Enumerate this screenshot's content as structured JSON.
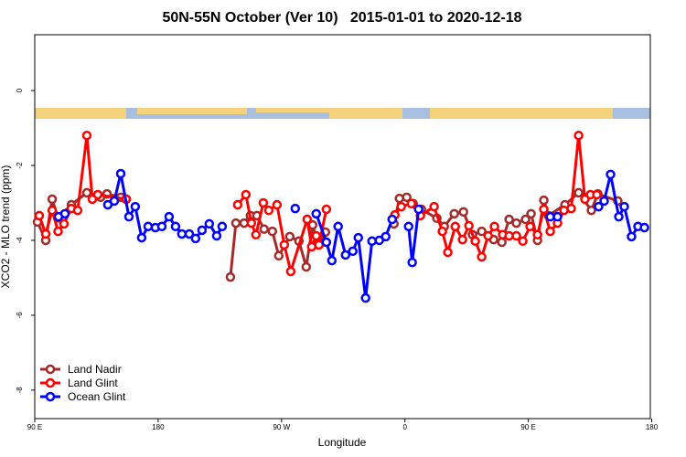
{
  "chart_data": {
    "type": "line",
    "title": "50N-55N October (Ver 10)   2015-01-01 to 2020-12-18",
    "xlabel": "Longitude",
    "ylabel": "XCO2 - MLO trend (ppm)",
    "xlim": [
      90,
      539
    ],
    "ylim": [
      -8.76,
      1.49
    ],
    "xticks": [
      {
        "value": 90,
        "label": "90 E"
      },
      {
        "value": 180,
        "label": "180"
      },
      {
        "value": 270,
        "label": "90 W"
      },
      {
        "value": 360,
        "label": "0"
      },
      {
        "value": 450,
        "label": "90 E"
      },
      {
        "value": 540,
        "label": "180"
      }
    ],
    "yticks": [
      0,
      -2,
      -4,
      -6,
      -8
    ],
    "grid": false,
    "legend": "bottom left",
    "series": [
      {
        "name": "Land Nadir",
        "color": "#a52a2a",
        "x": [
          92,
          98,
          102.7,
          107,
          116.7,
          128,
          138,
          142.7,
          152.7,
          156.7,
          null,
          232.7,
          236.7,
          242.7,
          247.3,
          252,
          257.3,
          263.3,
          268,
          276,
          282.7,
          288,
          292.7,
          296.7,
          302,
          null,
          352,
          356,
          361.3,
          366,
          372,
          383.3,
          388.7,
          396,
          402.7,
          409.3,
          416,
          424.7,
          430.7,
          436,
          441.3,
          448,
          452,
          456.7,
          461.3,
          464.7,
          476.7,
          486.7,
          496,
          500.7,
          515.3
        ],
        "values": [
          -3.51,
          -4.0,
          -2.9,
          -3.4,
          -3.05,
          -2.73,
          -2.85,
          -2.76,
          -2.85,
          -2.9,
          null,
          -4.98,
          -3.54,
          -3.54,
          -3.34,
          -3.34,
          -3.7,
          -3.76,
          -4.41,
          -3.9,
          -4.02,
          -4.71,
          -3.59,
          -4.12,
          -3.78,
          null,
          -3.56,
          -2.88,
          -2.85,
          -3.02,
          -3.17,
          -3.41,
          -3.63,
          -3.29,
          -3.24,
          -3.85,
          -3.76,
          -3.98,
          -4.05,
          -3.44,
          -3.54,
          -3.44,
          -3.29,
          -4.0,
          -2.93,
          -3.34,
          -3.05,
          -2.73,
          -3.2,
          -2.76,
          -2.95
        ]
      },
      {
        "name": "Land Glint",
        "color": "#ff0000",
        "x": [
          93.3,
          98,
          102.7,
          107,
          111.3,
          116.7,
          121.3,
          128,
          132,
          136,
          156.7,
          null,
          238,
          244,
          248,
          251.3,
          256.7,
          260.7,
          266.7,
          272,
          276.7,
          288.7,
          292,
          295.3,
          297.3,
          302.7,
          null,
          352.7,
          357.3,
          364.7,
          371.3,
          381.3,
          387.3,
          391.3,
          396.7,
          402,
          406.7,
          411.3,
          416,
          420.7,
          425.3,
          431.3,
          436,
          441.3,
          446,
          451.3,
          456.7,
          461.3,
          466,
          471.3,
          476,
          481.3,
          486.7,
          491.3,
          495.3,
          500
        ],
        "values": [
          -3.34,
          -3.83,
          -3.2,
          -3.76,
          -3.56,
          -3.15,
          -3.2,
          -1.2,
          -2.9,
          -2.78,
          -2.9,
          null,
          -3.05,
          -2.78,
          -3.54,
          -3.85,
          -3.0,
          -3.2,
          -3.05,
          -4.12,
          -4.83,
          -3.44,
          -4.17,
          -3.88,
          -4.12,
          -3.17,
          null,
          -3.32,
          -3.1,
          -3.02,
          -3.34,
          -3.1,
          -3.76,
          -4.32,
          -3.63,
          -3.98,
          -3.61,
          -4.02,
          -4.44,
          -3.88,
          -3.63,
          -3.85,
          -3.88,
          -3.88,
          -4.02,
          -3.63,
          -3.85,
          -3.17,
          -3.76,
          -3.54,
          -3.2,
          -3.15,
          -1.2,
          -2.9,
          -2.78,
          -2.78
        ]
      },
      {
        "name": "Ocean Glint",
        "color": "#0000ff",
        "x": [
          107.3,
          112,
          null,
          143.3,
          148,
          152.7,
          158.7,
          163.3,
          168,
          172.7,
          178,
          182.7,
          188,
          192.7,
          197.3,
          202.7,
          207.3,
          212,
          217.3,
          222.7,
          226.7,
          null,
          280,
          null,
          295.3,
          302.7,
          306.7,
          311.3,
          316.7,
          322,
          326,
          331.3,
          336,
          341.3,
          346,
          350.7,
          null,
          362.7,
          365.3,
          370,
          null,
          466,
          471.3,
          null,
          501.3,
          505.3,
          510,
          516,
          520,
          525.3,
          530,
          534.7
        ],
        "values": [
          -3.37,
          -3.29,
          null,
          -3.05,
          -2.95,
          -2.22,
          -3.37,
          -3.1,
          -3.93,
          -3.63,
          -3.66,
          -3.63,
          -3.37,
          -3.63,
          -3.83,
          -3.83,
          -3.95,
          -3.73,
          -3.56,
          -3.88,
          -3.63,
          null,
          -3.15,
          null,
          -3.29,
          -4.05,
          -4.54,
          -3.63,
          -4.39,
          -4.29,
          -3.93,
          -5.54,
          -4.02,
          -4.0,
          -3.9,
          -3.44,
          null,
          -3.63,
          -4.59,
          -3.17,
          null,
          -3.37,
          -3.37,
          null,
          -3.1,
          -2.95,
          -2.24,
          -3.37,
          -3.1,
          -3.9,
          -3.63,
          -3.66
        ]
      }
    ]
  }
}
